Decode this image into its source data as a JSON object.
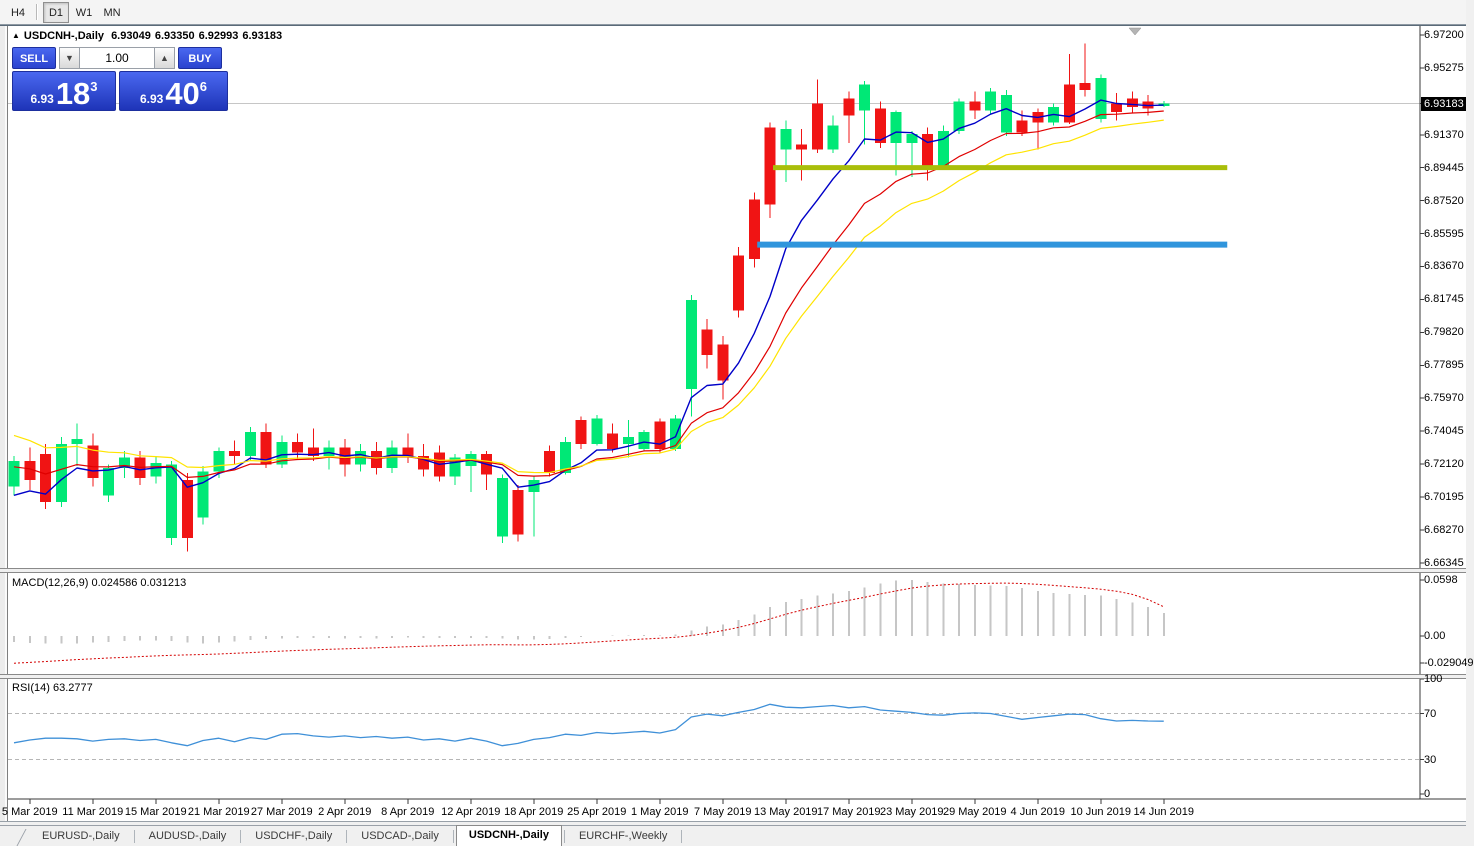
{
  "window": {
    "title_symbol": "USDCNH-,Daily",
    "ohlc_line": {
      "open": "6.93049",
      "high": "6.93350",
      "low": "6.92993",
      "close": "6.93183"
    }
  },
  "icons": {
    "collapse_arrow": "▲",
    "spin_down": "▼",
    "spin_up": "▲",
    "shift_marker": "▼"
  },
  "toolbar": {
    "timeframes": [
      "H4",
      "D1",
      "W1",
      "MN"
    ],
    "active": "D1"
  },
  "trade_panel": {
    "sell_label": "SELL",
    "buy_label": "BUY",
    "volume": "1.00",
    "sell_price_small": "6.93",
    "sell_price_big": "18",
    "sell_price_sup": "3",
    "buy_price_small": "6.93",
    "buy_price_big": "40",
    "buy_price_sup": "6"
  },
  "price_axis": {
    "labels": [
      {
        "text": "6.97200",
        "value": 6.972
      },
      {
        "text": "6.95275",
        "value": 6.95275
      },
      {
        "text": "6.91370",
        "value": 6.9137
      },
      {
        "text": "6.89445",
        "value": 6.89445
      },
      {
        "text": "6.87520",
        "value": 6.8752
      },
      {
        "text": "6.85595",
        "value": 6.85595
      },
      {
        "text": "6.83670",
        "value": 6.8367
      },
      {
        "text": "6.81745",
        "value": 6.81745
      },
      {
        "text": "6.79820",
        "value": 6.7982
      },
      {
        "text": "6.77895",
        "value": 6.77895
      },
      {
        "text": "6.75970",
        "value": 6.7597
      },
      {
        "text": "6.74045",
        "value": 6.74045
      },
      {
        "text": "6.72120",
        "value": 6.7212
      },
      {
        "text": "6.70195",
        "value": 6.70195
      },
      {
        "text": "6.68270",
        "value": 6.6827
      },
      {
        "text": "6.66345",
        "value": 6.66345
      }
    ],
    "current": {
      "text": "6.93183",
      "value": 6.93183
    }
  },
  "time_axis": {
    "ticks": [
      {
        "label": "5 Mar 2019",
        "index": 1
      },
      {
        "label": "11 Mar 2019",
        "index": 5
      },
      {
        "label": "15 Mar 2019",
        "index": 9
      },
      {
        "label": "21 Mar 2019",
        "index": 13
      },
      {
        "label": "27 Mar 2019",
        "index": 17
      },
      {
        "label": "2 Apr 2019",
        "index": 21
      },
      {
        "label": "8 Apr 2019",
        "index": 25
      },
      {
        "label": "12 Apr 2019",
        "index": 29
      },
      {
        "label": "18 Apr 2019",
        "index": 33
      },
      {
        "label": "25 Apr 2019",
        "index": 37
      },
      {
        "label": "1 May 2019",
        "index": 41
      },
      {
        "label": "7 May 2019",
        "index": 45
      },
      {
        "label": "13 May 2019",
        "index": 49
      },
      {
        "label": "17 May 2019",
        "index": 53
      },
      {
        "label": "23 May 2019",
        "index": 57
      },
      {
        "label": "29 May 2019",
        "index": 61
      },
      {
        "label": "4 Jun 2019",
        "index": 65
      },
      {
        "label": "10 Jun 2019",
        "index": 69
      },
      {
        "label": "14 Jun 2019",
        "index": 73
      }
    ]
  },
  "colors": {
    "candle_up": "#00E876",
    "candle_down": "#F01414",
    "ma_fast": "#0000C8",
    "ma_mid": "#E00000",
    "ma_slow": "#FFE400",
    "hline_olive": "#A9BE0A",
    "hline_blue": "#3095DC",
    "bid_line": "#C6C6C6",
    "macd_hist": "#C6C6C6",
    "macd_signal": "#D40000",
    "rsi_line": "#3F90D8",
    "rsi_levels": "#B6B6B6",
    "trade_blue": "#2B43CF"
  },
  "chart_data": {
    "type": "candlestick",
    "symbol": "USDCNH-",
    "timeframe": "Daily",
    "ylim": [
      6.66345,
      6.972
    ],
    "candles": [
      [
        6.708,
        6.726,
        6.703,
        6.723
      ],
      [
        6.723,
        6.731,
        6.706,
        6.712
      ],
      [
        6.727,
        6.733,
        6.695,
        6.699
      ],
      [
        6.699,
        6.737,
        6.696,
        6.733
      ],
      [
        6.733,
        6.745,
        6.72,
        6.736
      ],
      [
        6.732,
        6.739,
        6.708,
        6.713
      ],
      [
        6.703,
        6.721,
        6.699,
        6.719
      ],
      [
        6.719,
        6.729,
        6.713,
        6.725
      ],
      [
        6.725,
        6.729,
        6.709,
        6.713
      ],
      [
        6.714,
        6.726,
        6.71,
        6.722
      ],
      [
        6.678,
        6.723,
        6.674,
        6.721
      ],
      [
        6.712,
        6.716,
        6.67,
        6.678
      ],
      [
        6.69,
        6.72,
        6.686,
        6.717
      ],
      [
        6.717,
        6.731,
        6.713,
        6.729
      ],
      [
        6.729,
        6.735,
        6.721,
        6.726
      ],
      [
        6.726,
        6.743,
        6.723,
        6.74
      ],
      [
        6.74,
        6.745,
        6.719,
        6.721
      ],
      [
        6.721,
        6.738,
        6.719,
        6.734
      ],
      [
        6.734,
        6.739,
        6.724,
        6.728
      ],
      [
        6.731,
        6.742,
        6.723,
        6.726
      ],
      [
        6.726,
        6.735,
        6.718,
        6.731
      ],
      [
        6.731,
        6.736,
        6.714,
        6.721
      ],
      [
        6.721,
        6.733,
        6.717,
        6.729
      ],
      [
        6.729,
        6.734,
        6.715,
        6.719
      ],
      [
        6.719,
        6.735,
        6.716,
        6.731
      ],
      [
        6.731,
        6.739,
        6.722,
        6.726
      ],
      [
        6.726,
        6.733,
        6.714,
        6.718
      ],
      [
        6.728,
        6.732,
        6.711,
        6.714
      ],
      [
        6.714,
        6.727,
        6.709,
        6.725
      ],
      [
        6.72,
        6.729,
        6.705,
        6.727
      ],
      [
        6.727,
        6.729,
        6.706,
        6.715
      ],
      [
        6.679,
        6.715,
        6.675,
        6.713
      ],
      [
        6.706,
        6.709,
        6.676,
        6.68
      ],
      [
        6.705,
        6.714,
        6.679,
        6.712
      ],
      [
        6.729,
        6.732,
        6.714,
        6.716
      ],
      [
        6.716,
        6.737,
        6.715,
        6.734
      ],
      [
        6.747,
        6.749,
        6.73,
        6.733
      ],
      [
        6.733,
        6.75,
        6.732,
        6.748
      ],
      [
        6.739,
        6.745,
        6.728,
        6.73
      ],
      [
        6.733,
        6.747,
        6.725,
        6.737
      ],
      [
        6.73,
        6.741,
        6.729,
        6.74
      ],
      [
        6.746,
        6.748,
        6.728,
        6.73
      ],
      [
        6.73,
        6.75,
        6.729,
        6.748
      ],
      [
        6.765,
        6.82,
        6.749,
        6.817
      ],
      [
        6.8,
        6.806,
        6.777,
        6.785
      ],
      [
        6.791,
        6.796,
        6.759,
        6.77
      ],
      [
        6.843,
        6.848,
        6.807,
        6.811
      ],
      [
        6.876,
        6.88,
        6.836,
        6.841
      ],
      [
        6.918,
        6.921,
        6.865,
        6.873
      ],
      [
        6.905,
        6.922,
        6.886,
        6.917
      ],
      [
        6.908,
        6.917,
        6.887,
        6.905
      ],
      [
        6.932,
        6.946,
        6.903,
        6.905
      ],
      [
        6.905,
        6.925,
        6.903,
        6.919
      ],
      [
        6.935,
        6.939,
        6.909,
        6.925
      ],
      [
        6.928,
        6.945,
        6.908,
        6.943
      ],
      [
        6.929,
        6.933,
        6.906,
        6.909
      ],
      [
        6.909,
        6.928,
        6.89,
        6.927
      ],
      [
        6.909,
        6.916,
        6.889,
        6.914
      ],
      [
        6.914,
        6.918,
        6.887,
        6.895
      ],
      [
        6.895,
        6.919,
        6.893,
        6.916
      ],
      [
        6.916,
        6.935,
        6.914,
        6.933
      ],
      [
        6.933,
        6.939,
        6.923,
        6.928
      ],
      [
        6.928,
        6.941,
        6.926,
        6.939
      ],
      [
        6.915,
        6.94,
        6.913,
        6.937
      ],
      [
        6.922,
        6.928,
        6.913,
        6.915
      ],
      [
        6.927,
        6.929,
        6.905,
        6.921
      ],
      [
        6.921,
        6.932,
        6.919,
        6.93
      ],
      [
        6.943,
        6.961,
        6.92,
        6.921
      ],
      [
        6.944,
        6.967,
        6.936,
        6.94
      ],
      [
        6.923,
        6.949,
        6.921,
        6.947
      ],
      [
        6.932,
        6.938,
        6.922,
        6.927
      ],
      [
        6.935,
        6.939,
        6.926,
        6.93
      ],
      [
        6.933,
        6.937,
        6.925,
        6.929
      ],
      [
        6.93049,
        6.9335,
        6.92993,
        6.93183
      ]
    ],
    "moving_averages": [
      {
        "name": "ma-fast",
        "period": 6,
        "seed": 6.695,
        "color_key": "ma_fast"
      },
      {
        "name": "ma-mid",
        "period": 12,
        "seed": 6.719,
        "color_key": "ma_mid"
      },
      {
        "name": "ma-slow",
        "period": 16,
        "seed": 6.74,
        "color_key": "ma_slow"
      }
    ],
    "hlines": [
      {
        "name": "resistance-olive",
        "price": 6.8945,
        "color_key": "hline_olive",
        "thickness": 5,
        "start_index": 48,
        "end_index": 75
      },
      {
        "name": "support-blue",
        "price": 6.8495,
        "color_key": "hline_blue",
        "thickness": 6,
        "start_index": 47,
        "end_index": 75
      }
    ],
    "bid_line_price": 6.93183,
    "indicators": {
      "macd": {
        "label": "MACD(12,26,9) 0.024586 0.031213",
        "params": "12,26,9",
        "value_main": "0.024586",
        "value_signal": "0.031213",
        "axis_labels": [
          {
            "text": "0.0598",
            "value": 0.0598
          },
          {
            "text": "0.00",
            "value": 0
          },
          {
            "text": "-0.029049",
            "value": -0.029049
          }
        ],
        "range": [
          -0.029049,
          0.0598
        ],
        "hist": [
          -0.0065,
          -0.0075,
          -0.008,
          -0.0082,
          -0.0078,
          -0.007,
          -0.0062,
          -0.0055,
          -0.005,
          -0.0046,
          -0.0052,
          -0.007,
          -0.0078,
          -0.007,
          -0.006,
          -0.0045,
          -0.0032,
          -0.0025,
          -0.0022,
          -0.0024,
          -0.0024,
          -0.0026,
          -0.0024,
          -0.0026,
          -0.0022,
          -0.0018,
          -0.002,
          -0.0022,
          -0.0024,
          -0.002,
          -0.0022,
          -0.0028,
          -0.004,
          -0.0038,
          -0.0032,
          -0.002,
          -0.001,
          0.0002,
          0.0005,
          0.0008,
          0.001,
          0.0008,
          0.0015,
          0.006,
          0.01,
          0.0125,
          0.017,
          0.023,
          0.031,
          0.0365,
          0.0395,
          0.043,
          0.0455,
          0.048,
          0.052,
          0.056,
          0.059,
          0.0598,
          0.0575,
          0.056,
          0.0555,
          0.0545,
          0.054,
          0.0535,
          0.051,
          0.048,
          0.046,
          0.045,
          0.044,
          0.043,
          0.0395,
          0.036,
          0.031,
          0.0246
        ],
        "signal": [
          -0.029,
          -0.0282,
          -0.0272,
          -0.0262,
          -0.0252,
          -0.0243,
          -0.0235,
          -0.0228,
          -0.022,
          -0.0212,
          -0.0206,
          -0.0202,
          -0.0198,
          -0.0192,
          -0.0185,
          -0.0177,
          -0.0169,
          -0.0161,
          -0.0154,
          -0.0148,
          -0.0142,
          -0.0137,
          -0.0131,
          -0.0126,
          -0.012,
          -0.0114,
          -0.0109,
          -0.0105,
          -0.0101,
          -0.0097,
          -0.0094,
          -0.0093,
          -0.0095,
          -0.0094,
          -0.009,
          -0.0083,
          -0.0074,
          -0.0063,
          -0.0052,
          -0.0042,
          -0.0032,
          -0.0024,
          -0.0014,
          0.0004,
          0.003,
          0.0058,
          0.0092,
          0.0133,
          0.0183,
          0.0232,
          0.0275,
          0.0313,
          0.0348,
          0.038,
          0.0413,
          0.0448,
          0.0482,
          0.0512,
          0.0533,
          0.0546,
          0.0555,
          0.056,
          0.0563,
          0.0565,
          0.0561,
          0.0552,
          0.054,
          0.0528,
          0.0515,
          0.05,
          0.0478,
          0.0445,
          0.039,
          0.0312
        ]
      },
      "rsi": {
        "label": "RSI(14) 63.2777",
        "params": "14",
        "value": "63.2777",
        "axis_labels": [
          {
            "text": "100",
            "value": 100
          },
          {
            "text": "70",
            "value": 70
          },
          {
            "text": "30",
            "value": 30
          },
          {
            "text": "0",
            "value": 0
          }
        ],
        "levels": [
          70,
          30
        ],
        "range": [
          0,
          100
        ],
        "values": [
          44.5,
          47,
          48.5,
          48.5,
          48,
          46,
          47.5,
          48,
          46.5,
          47.5,
          44.5,
          42,
          46.5,
          48.5,
          45.5,
          49,
          47.5,
          52,
          52.5,
          50.5,
          49.5,
          50.5,
          49,
          50,
          48.5,
          49.5,
          47,
          48,
          46,
          48.5,
          46,
          42,
          44,
          47.5,
          49,
          52,
          51,
          53.5,
          52.5,
          53.5,
          54.5,
          53,
          56,
          67,
          69.5,
          68,
          71,
          73.5,
          78,
          75.5,
          75,
          76,
          77,
          75,
          76,
          73,
          72,
          71,
          69,
          68.5,
          70,
          70.5,
          70,
          67.5,
          65,
          66.5,
          68,
          69.5,
          69,
          65.5,
          63.5,
          64,
          63.5,
          63.28
        ]
      }
    }
  },
  "tabs": {
    "items": [
      "EURUSD-,Daily",
      "AUDUSD-,Daily",
      "USDCHF-,Daily",
      "USDCAD-,Daily",
      "USDCNH-,Daily",
      "EURCHF-,Weekly"
    ],
    "active": "USDCNH-,Daily"
  }
}
